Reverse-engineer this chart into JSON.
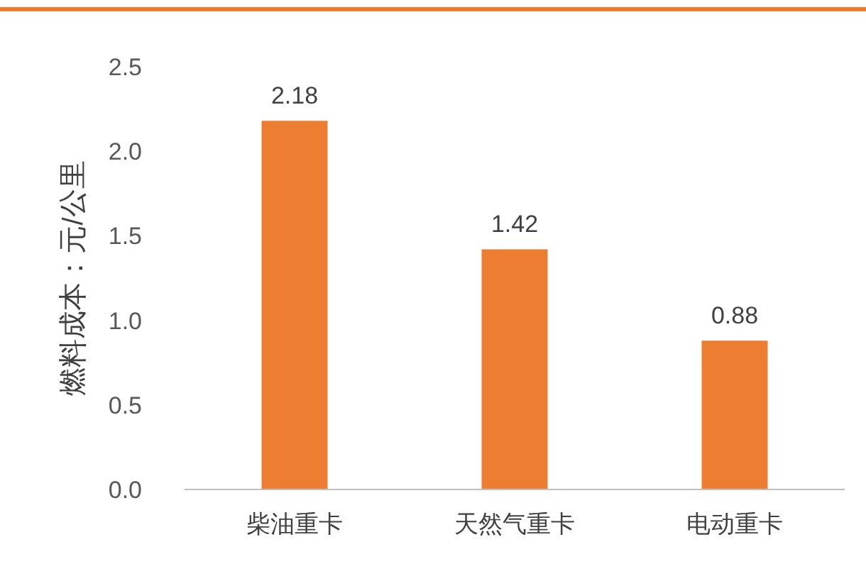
{
  "chart_data": {
    "type": "bar",
    "ylabel": "燃料成本：元/公里",
    "categories": [
      "柴油重卡",
      "天然气重卡",
      "电动重卡"
    ],
    "values": [
      2.18,
      1.42,
      0.88
    ],
    "color": "#ed7d31",
    "ylim": [
      0,
      2.5
    ],
    "yticks": [
      {
        "value": 0,
        "label": "0.0"
      },
      {
        "value": 0.5,
        "label": "0.5"
      },
      {
        "value": 1,
        "label": "1.0"
      },
      {
        "value": 1.5,
        "label": "1.5"
      },
      {
        "value": 2,
        "label": "2.0"
      },
      {
        "value": 2.5,
        "label": "2.5"
      }
    ],
    "data_labels": true
  }
}
